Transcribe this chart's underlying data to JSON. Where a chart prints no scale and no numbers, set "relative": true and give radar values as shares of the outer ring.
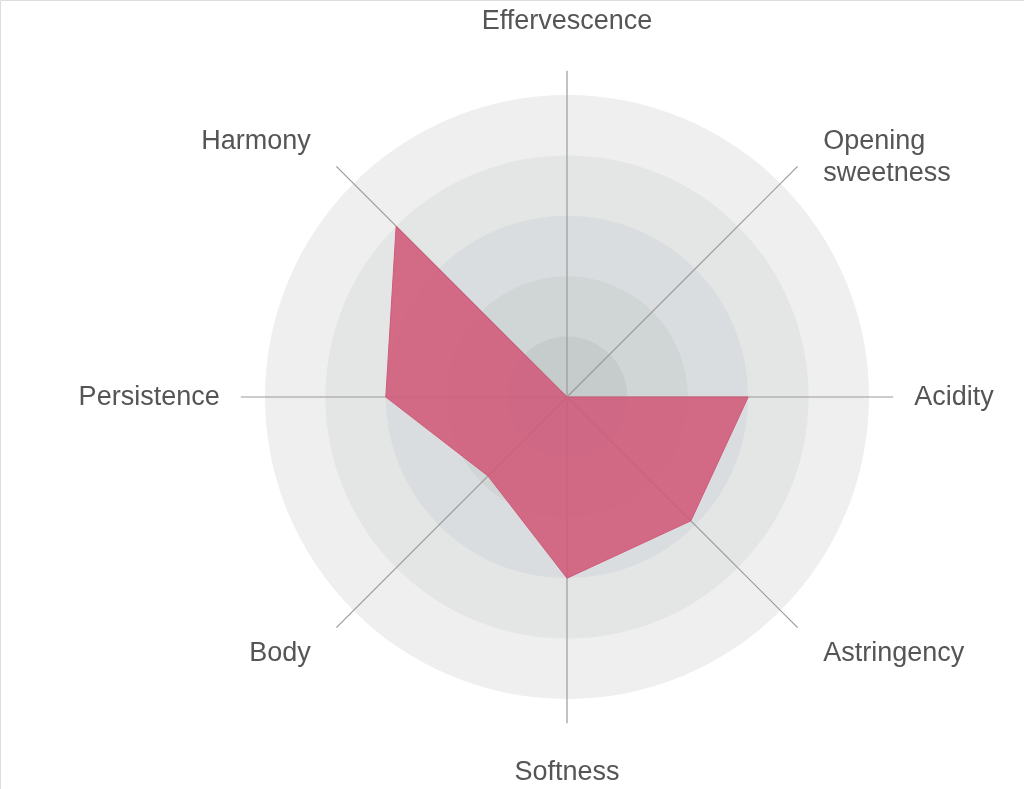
{
  "chart_data": {
    "type": "radar",
    "relative": true,
    "categories": [
      "Effervescence",
      "Opening sweetness",
      "Acidity",
      "Astringency",
      "Softness",
      "Body",
      "Persistence",
      "Harmony"
    ],
    "series": [
      {
        "color": "#d05a7a",
        "values": [
          0,
          0,
          0.6,
          0.58,
          0.6,
          0.37,
          0.6,
          0.8
        ]
      }
    ]
  }
}
